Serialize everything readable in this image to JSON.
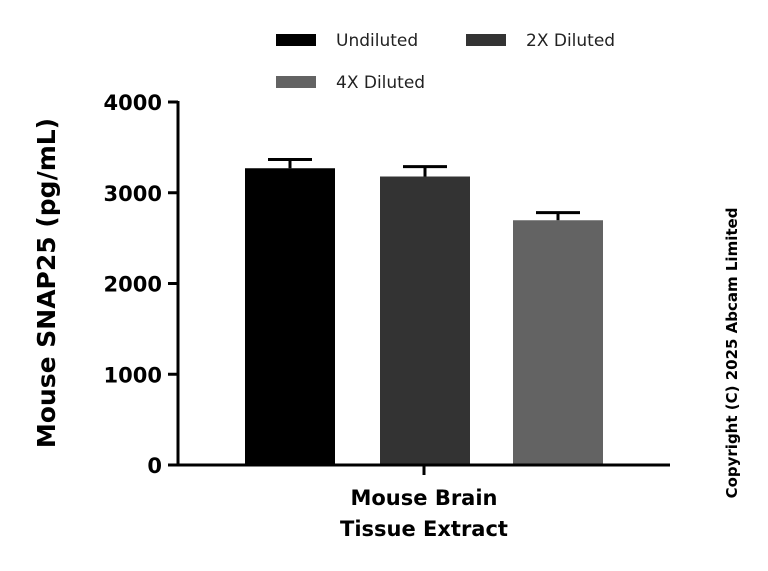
{
  "chart_data": {
    "type": "bar",
    "categories": [
      "Mouse Brain Tissue Extract"
    ],
    "category_lines": [
      "Mouse Brain",
      "Tissue Extract"
    ],
    "series": [
      {
        "name": "Undiluted",
        "values": [
          3270
        ],
        "error": [
          97
        ],
        "color": "#000000"
      },
      {
        "name": "2X Diluted",
        "values": [
          3179
        ],
        "error": [
          109
        ],
        "color": "#333333"
      },
      {
        "name": "4X Diluted",
        "values": [
          2697
        ],
        "error": [
          84
        ],
        "color": "#636363"
      }
    ],
    "xlabel": "",
    "ylabel": "Mouse SNAP25 (pg/mL)",
    "ylim": [
      0,
      4000
    ],
    "yticks": [
      "0",
      "1000",
      "2000",
      "3000",
      "4000"
    ],
    "grid": false,
    "legend_position": "top"
  },
  "copyright": "Copyright (C) 2025 Abcam Limited"
}
